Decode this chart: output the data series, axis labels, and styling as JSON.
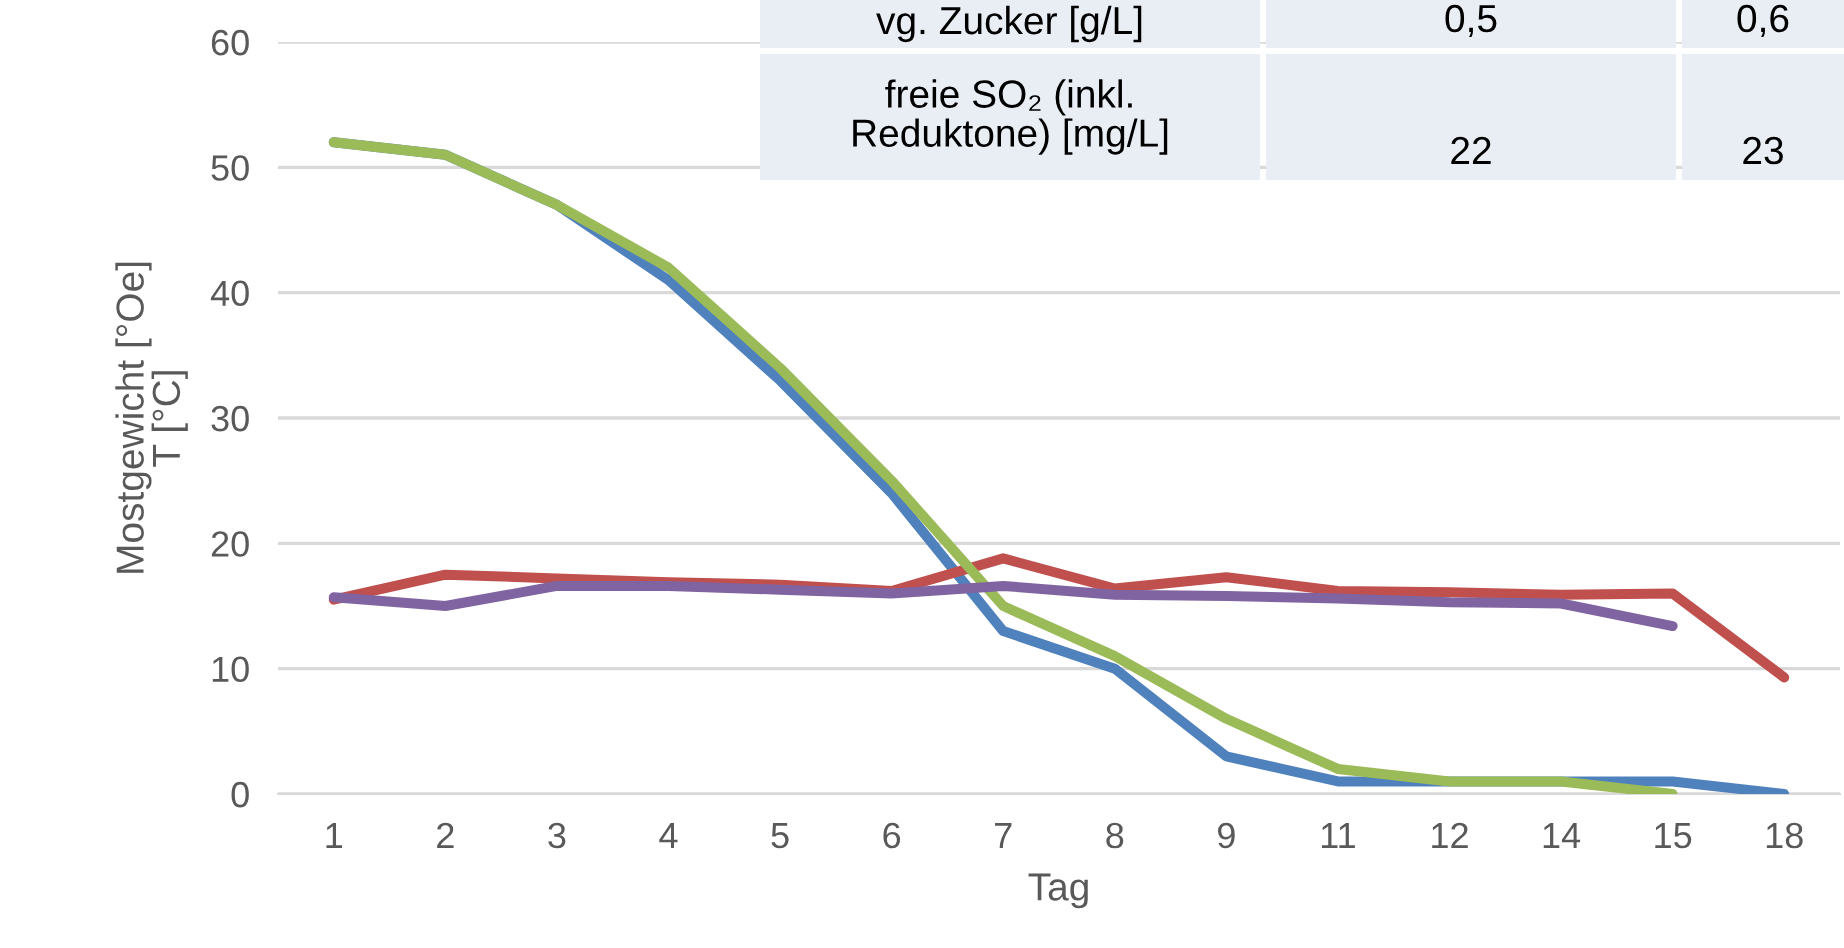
{
  "chart_data": {
    "type": "line",
    "xlabel": "Tag",
    "ylabel": "Mostgewicht [°Oe]\nT [°C]",
    "categories": [
      "1",
      "2",
      "3",
      "4",
      "5",
      "6",
      "7",
      "8",
      "9",
      "11",
      "12",
      "14",
      "15",
      "18"
    ],
    "series": [
      {
        "color": "#4f81bd",
        "values": [
          52,
          51,
          47,
          41,
          33,
          24,
          13,
          10,
          3,
          1,
          1,
          1,
          1,
          0
        ]
      },
      {
        "color": "#c0504d",
        "values": [
          15.5,
          17.5,
          17.2,
          16.9,
          16.7,
          16.2,
          18.8,
          16.4,
          17.3,
          16.2,
          16.1,
          15.9,
          16.0,
          9.3
        ]
      },
      {
        "color": "#9bbb59",
        "values": [
          52,
          51,
          47,
          42,
          34,
          25,
          15,
          11,
          6,
          2,
          1,
          1,
          0,
          null
        ]
      },
      {
        "color": "#8064a2",
        "values": [
          15.7,
          15,
          16.6,
          16.6,
          16.3,
          16,
          16.6,
          15.9,
          15.8,
          15.6,
          15.3,
          15.2,
          13.4,
          null
        ]
      }
    ],
    "ylim": [
      0,
      60
    ],
    "yticks": [
      0,
      10,
      20,
      30,
      40,
      50,
      60
    ],
    "grid": "y",
    "marker": "none",
    "line_style": "solid",
    "annotations": [
      "vg. Zucker [g/L]",
      "0,5",
      "0,6",
      "freie SO₂ (inkl.\nReduktone) [mg/L]",
      "22",
      "23"
    ]
  }
}
